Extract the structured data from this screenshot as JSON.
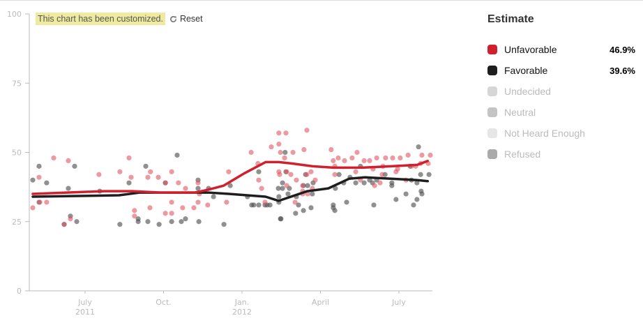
{
  "banner": {
    "message": "This chart has been customized.",
    "reset_label": "Reset"
  },
  "legend": {
    "title": "Estimate",
    "items": [
      {
        "label": "Unfavorable",
        "value": "46.9%",
        "color": "#d0202e",
        "active": true
      },
      {
        "label": "Favorable",
        "value": "39.6%",
        "color": "#1e1e1e",
        "active": true
      },
      {
        "label": "Undecided",
        "value": "",
        "color": "#d6d6d6",
        "active": false
      },
      {
        "label": "Neutral",
        "value": "",
        "color": "#c4c4c4",
        "active": false
      },
      {
        "label": "Not Heard Enough",
        "value": "",
        "color": "#e6e6e6",
        "active": false
      },
      {
        "label": "Refused",
        "value": "",
        "color": "#aaaaaa",
        "active": false
      }
    ]
  },
  "chart_data": {
    "type": "scatter",
    "title": "",
    "xlabel": "",
    "ylabel": "",
    "x_units": "months since July 2011",
    "xlim": [
      -3,
      13.3
    ],
    "ylim": [
      0,
      100
    ],
    "yticks": [
      0,
      25,
      50,
      75,
      100
    ],
    "xticks": [
      {
        "x": 0,
        "label": "July",
        "sub": "2011"
      },
      {
        "x": 3,
        "label": "Oct.",
        "sub": ""
      },
      {
        "x": 6,
        "label": "Jan.",
        "sub": "2012"
      },
      {
        "x": 9,
        "label": "April",
        "sub": ""
      },
      {
        "x": 12,
        "label": "July",
        "sub": ""
      }
    ],
    "grid": false,
    "legend_placement": "right",
    "series": [
      {
        "name": "Unfavorable",
        "color": "#d0202e",
        "trend": [
          [
            -2,
            35
          ],
          [
            0.75,
            36
          ],
          [
            1.8,
            36
          ],
          [
            2.9,
            35.5
          ],
          [
            4.2,
            35.5
          ],
          [
            4.7,
            36.5
          ],
          [
            5.3,
            38
          ],
          [
            6.1,
            42.5
          ],
          [
            6.9,
            46.5
          ],
          [
            7.4,
            46.5
          ],
          [
            7.9,
            46
          ],
          [
            8.7,
            45
          ],
          [
            9.5,
            44.5
          ],
          [
            10.6,
            44.5
          ],
          [
            11.7,
            45
          ],
          [
            12.7,
            45.5
          ],
          [
            13.1,
            46.9
          ]
        ],
        "points": [
          [
            -2,
            30
          ],
          [
            -1.76,
            41
          ],
          [
            -1.73,
            32
          ],
          [
            -1.47,
            32
          ],
          [
            -1.2,
            48
          ],
          [
            -0.8,
            24
          ],
          [
            -0.64,
            47
          ],
          [
            -0.56,
            26
          ],
          [
            0.53,
            42
          ],
          [
            1.33,
            43
          ],
          [
            1.68,
            48
          ],
          [
            1.76,
            41
          ],
          [
            1.89,
            27
          ],
          [
            1.89,
            29
          ],
          [
            2.48,
            30
          ],
          [
            2.5,
            43
          ],
          [
            2.4,
            41
          ],
          [
            2.8,
            41
          ],
          [
            3.07,
            39
          ],
          [
            3.07,
            28
          ],
          [
            3.31,
            43
          ],
          [
            3.31,
            32
          ],
          [
            3.57,
            39
          ],
          [
            3.31,
            28
          ],
          [
            3.73,
            30
          ],
          [
            3.84,
            37
          ],
          [
            4.16,
            30
          ],
          [
            4.32,
            32
          ],
          [
            4.32,
            39
          ],
          [
            4.37,
            35
          ],
          [
            4.69,
            31
          ],
          [
            5.41,
            32
          ],
          [
            5.49,
            43
          ],
          [
            6.35,
            50
          ],
          [
            6.61,
            46
          ],
          [
            6.64,
            40
          ],
          [
            6.75,
            37
          ],
          [
            6.88,
            32
          ],
          [
            7.12,
            52
          ],
          [
            7.47,
            50
          ],
          [
            7.63,
            48
          ],
          [
            7.71,
            38
          ],
          [
            7.87,
            42
          ],
          [
            8.03,
            32
          ],
          [
            7.41,
            57
          ],
          [
            7.41,
            53
          ],
          [
            7.41,
            43
          ],
          [
            7.44,
            42
          ],
          [
            7.68,
            57
          ],
          [
            7.71,
            43
          ],
          [
            8.48,
            58
          ],
          [
            8.08,
            40
          ],
          [
            7.95,
            50
          ],
          [
            8.37,
            51
          ],
          [
            8.32,
            38
          ],
          [
            8.32,
            36
          ],
          [
            8.32,
            35
          ],
          [
            8.64,
            43
          ],
          [
            8.48,
            42
          ],
          [
            8.51,
            35
          ],
          [
            8.69,
            37
          ],
          [
            8.8,
            40
          ],
          [
            9.41,
            51
          ],
          [
            9.49,
            47
          ],
          [
            9.55,
            45
          ],
          [
            9.55,
            42
          ],
          [
            9.68,
            48
          ],
          [
            9.92,
            47
          ],
          [
            10.21,
            48
          ],
          [
            10.35,
            43
          ],
          [
            10.4,
            50
          ],
          [
            10.53,
            40
          ],
          [
            10.67,
            47
          ],
          [
            10.88,
            47
          ],
          [
            11.01,
            44
          ],
          [
            11.07,
            38
          ],
          [
            11.15,
            48
          ],
          [
            11.28,
            39
          ],
          [
            11.36,
            42
          ],
          [
            11.39,
            45
          ],
          [
            11.49,
            48
          ],
          [
            11.76,
            48
          ],
          [
            11.89,
            43
          ],
          [
            11.95,
            44
          ],
          [
            12.05,
            48
          ],
          [
            12.27,
            40
          ],
          [
            12.35,
            49
          ],
          [
            12.48,
            45
          ],
          [
            12.64,
            45
          ],
          [
            12.83,
            46
          ],
          [
            12.88,
            49
          ],
          [
            13.12,
            46
          ],
          [
            13.2,
            49
          ]
        ]
      },
      {
        "name": "Favorable",
        "color": "#1e1e1e",
        "trend": [
          [
            -2,
            34
          ],
          [
            1.3,
            34.5
          ],
          [
            2.1,
            35.5
          ],
          [
            4.2,
            35.5
          ],
          [
            4.7,
            35.5
          ],
          [
            5.5,
            35
          ],
          [
            6.9,
            34
          ],
          [
            7.4,
            32.5
          ],
          [
            8.5,
            36
          ],
          [
            9.3,
            37
          ],
          [
            10.1,
            40.5
          ],
          [
            10.7,
            41
          ],
          [
            11.7,
            40.5
          ],
          [
            12.7,
            40
          ],
          [
            13.1,
            39.6
          ]
        ],
        "points": [
          [
            -2,
            40
          ],
          [
            -1.76,
            45
          ],
          [
            -1.76,
            32
          ],
          [
            -1.47,
            39
          ],
          [
            -0.8,
            24
          ],
          [
            -0.64,
            37
          ],
          [
            -0.56,
            27
          ],
          [
            -0.4,
            45
          ],
          [
            -0.32,
            25
          ],
          [
            0.56,
            36
          ],
          [
            1.33,
            24
          ],
          [
            1.68,
            39
          ],
          [
            2.03,
            25
          ],
          [
            2.03,
            26
          ],
          [
            2.32,
            45
          ],
          [
            2.4,
            25
          ],
          [
            2.83,
            24
          ],
          [
            3.07,
            39
          ],
          [
            3.31,
            25
          ],
          [
            3.52,
            49
          ],
          [
            3.68,
            25
          ],
          [
            3.84,
            26
          ],
          [
            4.32,
            37
          ],
          [
            4.32,
            40
          ],
          [
            4.35,
            25
          ],
          [
            4.72,
            37
          ],
          [
            4.91,
            34
          ],
          [
            5.31,
            24
          ],
          [
            5.55,
            38
          ],
          [
            6.21,
            34
          ],
          [
            6.37,
            31
          ],
          [
            6.45,
            31
          ],
          [
            6.64,
            31
          ],
          [
            6.64,
            43
          ],
          [
            6.88,
            31
          ],
          [
            6.96,
            31
          ],
          [
            7.07,
            31
          ],
          [
            7.39,
            37
          ],
          [
            7.41,
            32
          ],
          [
            7.47,
            26
          ],
          [
            7.49,
            26
          ],
          [
            7.41,
            34
          ],
          [
            7.55,
            39
          ],
          [
            7.55,
            37
          ],
          [
            7.68,
            43
          ],
          [
            7.65,
            50
          ],
          [
            7.76,
            35
          ],
          [
            7.81,
            37
          ],
          [
            8.05,
            28
          ],
          [
            8.08,
            34
          ],
          [
            8.16,
            31
          ],
          [
            8.35,
            38
          ],
          [
            8.35,
            29
          ],
          [
            8.43,
            42
          ],
          [
            8.51,
            38
          ],
          [
            8.64,
            30
          ],
          [
            8.69,
            35
          ],
          [
            8.72,
            39
          ],
          [
            9.57,
            37
          ],
          [
            9.49,
            31
          ],
          [
            9.49,
            30
          ],
          [
            9.55,
            29
          ],
          [
            9.71,
            42
          ],
          [
            9.89,
            39
          ],
          [
            10.0,
            32
          ],
          [
            10.13,
            41
          ],
          [
            10.35,
            39
          ],
          [
            10.53,
            45
          ],
          [
            10.67,
            39
          ],
          [
            10.88,
            40
          ],
          [
            10.99,
            39
          ],
          [
            11.04,
            31
          ],
          [
            11.15,
            40
          ],
          [
            11.73,
            38
          ],
          [
            11.73,
            39
          ],
          [
            11.47,
            42
          ],
          [
            11.89,
            33
          ],
          [
            12.27,
            35
          ],
          [
            12.43,
            45
          ],
          [
            12.48,
            40
          ],
          [
            12.56,
            31
          ],
          [
            12.75,
            52
          ],
          [
            12.69,
            33
          ],
          [
            12.69,
            39
          ],
          [
            12.85,
            36
          ],
          [
            12.88,
            35
          ],
          [
            12.83,
            42
          ],
          [
            13.15,
            42
          ]
        ]
      }
    ]
  }
}
